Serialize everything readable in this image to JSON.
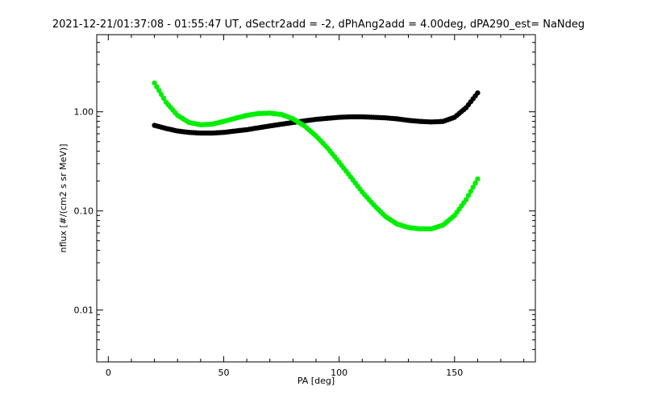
{
  "chart_data": {
    "type": "scatter",
    "title": "2021-12-21/01:37:08 - 01:55:47 UT, dSectr2add = -2, dPhAng2add = 4.00deg, dPA290_est=    NaNdeg",
    "xlabel": "PA [deg]",
    "ylabel": "nflux [#/(cm2 s sr MeV)]",
    "xlim": [
      -5,
      185
    ],
    "ylim": [
      0.003,
      6
    ],
    "yscale": "log",
    "grid": false,
    "x_ticks": [
      0,
      50,
      100,
      150
    ],
    "x_tick_labels": [
      "0",
      "50",
      "100",
      "150"
    ],
    "y_ticks": [
      0.01,
      0.1,
      1.0
    ],
    "y_tick_labels": [
      "0.01",
      "0.10",
      "1.00"
    ],
    "series": [
      {
        "color": "#000000",
        "x": [
          20,
          25,
          30,
          35,
          40,
          45,
          50,
          55,
          60,
          65,
          70,
          75,
          80,
          85,
          90,
          95,
          100,
          105,
          110,
          115,
          120,
          125,
          130,
          135,
          140,
          145,
          150,
          155,
          160
        ],
        "y": [
          0.73,
          0.68,
          0.64,
          0.62,
          0.61,
          0.61,
          0.62,
          0.64,
          0.66,
          0.69,
          0.72,
          0.75,
          0.78,
          0.81,
          0.84,
          0.86,
          0.88,
          0.89,
          0.89,
          0.88,
          0.87,
          0.85,
          0.82,
          0.8,
          0.79,
          0.8,
          0.88,
          1.1,
          1.55
        ]
      },
      {
        "color": "#00ee00",
        "x": [
          20,
          25,
          30,
          35,
          40,
          45,
          50,
          55,
          60,
          65,
          70,
          75,
          80,
          85,
          90,
          95,
          100,
          105,
          110,
          115,
          120,
          125,
          130,
          135,
          140,
          145,
          150,
          155,
          160
        ],
        "y": [
          1.95,
          1.25,
          0.92,
          0.78,
          0.74,
          0.75,
          0.8,
          0.86,
          0.92,
          0.96,
          0.97,
          0.94,
          0.85,
          0.72,
          0.57,
          0.43,
          0.31,
          0.22,
          0.155,
          0.115,
          0.088,
          0.074,
          0.068,
          0.066,
          0.066,
          0.072,
          0.09,
          0.13,
          0.21
        ]
      }
    ]
  }
}
